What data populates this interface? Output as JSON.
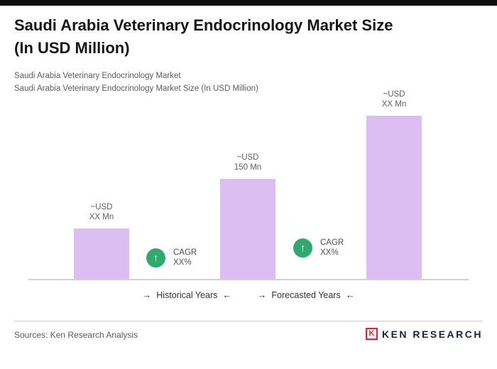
{
  "header": {
    "title_line1": "Saudi Arabia Veterinary Endocrinology Market Size",
    "title_line2": "(In USD Million)",
    "subtitle1": "Saudi Arabia Veterinary Endocrinology Market",
    "subtitle2": "Saudi Arabia Veterinary Endocrinology Market Size (In USD Million)"
  },
  "chart": {
    "bars": [
      {
        "label_line1": "~USD",
        "label_line2": "XX Mn"
      },
      {
        "label_line1": "~USD",
        "label_line2": "150 Mn"
      },
      {
        "label_line1": "~USD",
        "label_line2": "XX Mn"
      }
    ],
    "cagr_badges": [
      {
        "icon": "↑",
        "line1": "CAGR",
        "line2": "XX%"
      },
      {
        "icon": "↑",
        "line1": "CAGR",
        "line2": "XX%"
      }
    ],
    "bar_color": "#dcbef2",
    "badge_color": "#2fa96d"
  },
  "chart_data": {
    "type": "bar",
    "title": "Saudi Arabia Veterinary Endocrinology Market Size (In USD Million)",
    "series": [
      {
        "name": "Market Size (USD Mn)",
        "values": [
          75,
          150,
          245
        ]
      }
    ],
    "data_labels": [
      "~USD XX Mn",
      "~USD 150 Mn",
      "~USD XX Mn"
    ],
    "annotations": [
      "CAGR XX%",
      "CAGR XX%"
    ],
    "x_segments": [
      "Historical Years",
      "Forecasted Years"
    ],
    "y_axis_visible": false,
    "gridlines": false,
    "ylim": [
      0,
      260
    ],
    "bar_color": "#dcbef2",
    "legend": "none"
  },
  "timeline": {
    "arrow_right": "→",
    "arrow_left": "←",
    "historical": "Historical Years",
    "forecasted": "Forecasted Years"
  },
  "footer": {
    "sources": "Sources: Ken Research Analysis",
    "logo_letter": "K",
    "logo_text": "KEN RESEARCH"
  }
}
